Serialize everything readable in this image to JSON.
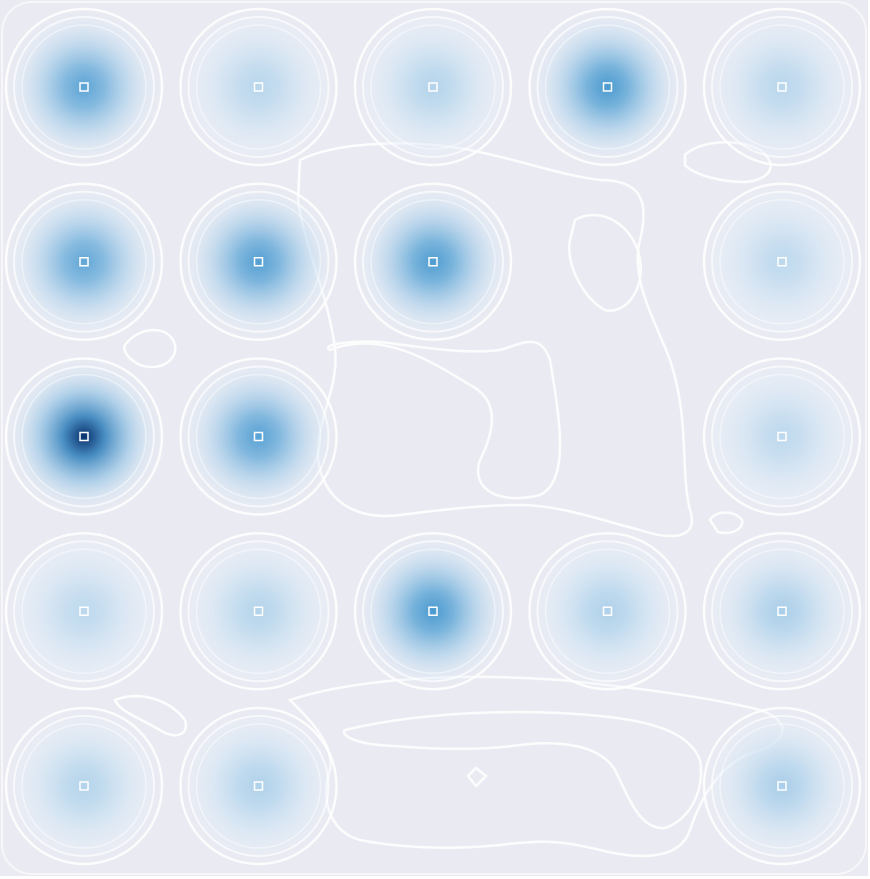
{
  "chart_data": {
    "type": "heatmap",
    "subtype": "kernel-density-contour",
    "title": "",
    "xlabel": "",
    "ylabel": "",
    "axes_visible": false,
    "grid": false,
    "legend": "none",
    "colormap": "Blues",
    "colors": {
      "background": "#eaeaf2",
      "contour_line": "#ffffff",
      "low": "#eaf1f9",
      "mid": "#4a9ad0",
      "high": "#08306b"
    },
    "grid_layout": {
      "columns": 5,
      "rows": 5
    },
    "peaks": [
      {
        "row": 1,
        "col": 1,
        "intensity": 0.62
      },
      {
        "row": 1,
        "col": 2,
        "intensity": 0.22
      },
      {
        "row": 1,
        "col": 3,
        "intensity": 0.24
      },
      {
        "row": 1,
        "col": 4,
        "intensity": 0.7
      },
      {
        "row": 1,
        "col": 5,
        "intensity": 0.22
      },
      {
        "row": 2,
        "col": 1,
        "intensity": 0.6
      },
      {
        "row": 2,
        "col": 2,
        "intensity": 0.66
      },
      {
        "row": 2,
        "col": 3,
        "intensity": 0.68
      },
      {
        "row": 2,
        "col": 5,
        "intensity": 0.2
      },
      {
        "row": 3,
        "col": 1,
        "intensity": 1.0
      },
      {
        "row": 3,
        "col": 2,
        "intensity": 0.64
      },
      {
        "row": 3,
        "col": 5,
        "intensity": 0.2
      },
      {
        "row": 4,
        "col": 1,
        "intensity": 0.2
      },
      {
        "row": 4,
        "col": 2,
        "intensity": 0.24
      },
      {
        "row": 4,
        "col": 3,
        "intensity": 0.7
      },
      {
        "row": 4,
        "col": 4,
        "intensity": 0.26
      },
      {
        "row": 4,
        "col": 5,
        "intensity": 0.28
      },
      {
        "row": 5,
        "col": 1,
        "intensity": 0.24
      },
      {
        "row": 5,
        "col": 2,
        "intensity": 0.26
      },
      {
        "row": 5,
        "col": 5,
        "intensity": 0.28
      }
    ]
  }
}
